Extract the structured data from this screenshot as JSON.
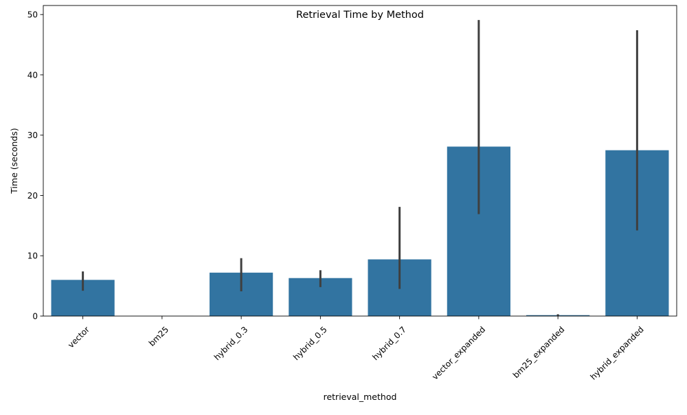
{
  "chart_data": {
    "type": "bar",
    "title": "Retrieval Time by Method",
    "xlabel": "retrieval_method",
    "ylabel": "Time (seconds)",
    "ylim": [
      0,
      51.5
    ],
    "yticks": [
      0,
      10,
      20,
      30,
      40,
      50
    ],
    "grid": false,
    "categories": [
      "vector",
      "bm25",
      "hybrid_0.3",
      "hybrid_0.5",
      "hybrid_0.7",
      "vector_expanded",
      "bm25_expanded",
      "hybrid_expanded"
    ],
    "values": [
      6.0,
      0.02,
      7.2,
      6.3,
      9.4,
      28.1,
      0.15,
      27.5
    ],
    "error_low": [
      4.2,
      0.0,
      4.1,
      4.8,
      4.5,
      16.9,
      0.05,
      14.2
    ],
    "error_high": [
      7.4,
      0.03,
      9.6,
      7.6,
      18.1,
      49.1,
      0.3,
      47.4
    ],
    "bar_color": "#3274a1",
    "errorbar_color": "#3f3f3f"
  }
}
